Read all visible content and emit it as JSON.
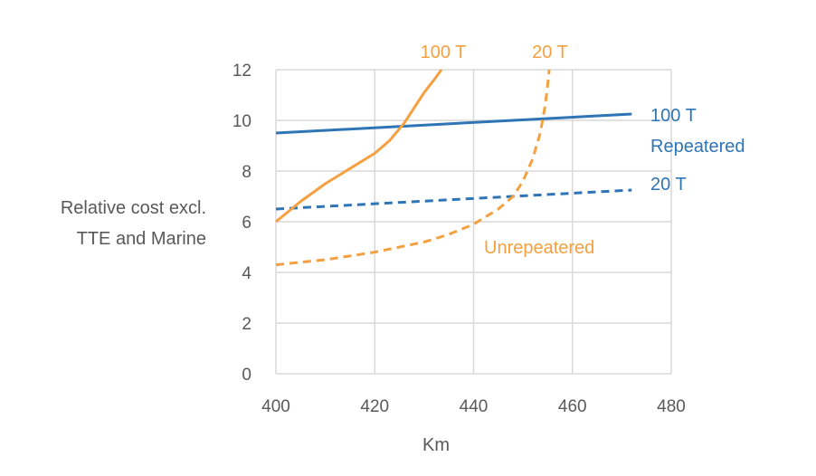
{
  "chart_data": {
    "type": "line",
    "title": "",
    "xlabel": "Km",
    "ylabel_lines": [
      "Relative  cost excl.",
      "TTE and Marine"
    ],
    "xlim": [
      400,
      480
    ],
    "ylim": [
      0,
      12
    ],
    "x_ticks": [
      400,
      420,
      440,
      460,
      480
    ],
    "y_ticks": [
      0,
      2,
      4,
      6,
      8,
      10,
      12
    ],
    "grid": true,
    "colors": {
      "repeatered": "#2E75B6",
      "unrepeatered": "#F4A040",
      "grid": "#D9D9D9",
      "text": "#595959"
    },
    "series": [
      {
        "group": "repeatered",
        "style": "solid",
        "points": [
          [
            400,
            9.5
          ],
          [
            472,
            10.25
          ]
        ]
      },
      {
        "group": "repeatered",
        "style": "dashed",
        "points": [
          [
            400,
            6.5
          ],
          [
            472,
            7.25
          ]
        ]
      },
      {
        "group": "unrepeatered",
        "style": "solid",
        "points": [
          [
            400,
            6.0
          ],
          [
            405,
            6.8
          ],
          [
            410,
            7.5
          ],
          [
            415,
            8.1
          ],
          [
            420,
            8.7
          ],
          [
            423,
            9.2
          ],
          [
            426,
            9.9
          ],
          [
            428,
            10.5
          ],
          [
            430,
            11.1
          ],
          [
            432,
            11.6
          ],
          [
            433.5,
            12.0
          ]
        ]
      },
      {
        "group": "unrepeatered",
        "style": "dashed",
        "points": [
          [
            400,
            4.3
          ],
          [
            410,
            4.5
          ],
          [
            420,
            4.8
          ],
          [
            430,
            5.2
          ],
          [
            435,
            5.5
          ],
          [
            440,
            5.9
          ],
          [
            445,
            6.5
          ],
          [
            448,
            7.0
          ],
          [
            450,
            7.6
          ],
          [
            452,
            8.5
          ],
          [
            453.5,
            9.5
          ],
          [
            454.5,
            10.6
          ],
          [
            455,
            11.4
          ],
          [
            455.3,
            12.0
          ]
        ]
      }
    ],
    "annotations": {
      "unrep_100": "100 T",
      "unrep_20": "20 T",
      "rep_100": "100 T",
      "repeatered": "Repeatered",
      "rep_20": "20 T",
      "unrepeatered": "Unrepeatered"
    }
  }
}
